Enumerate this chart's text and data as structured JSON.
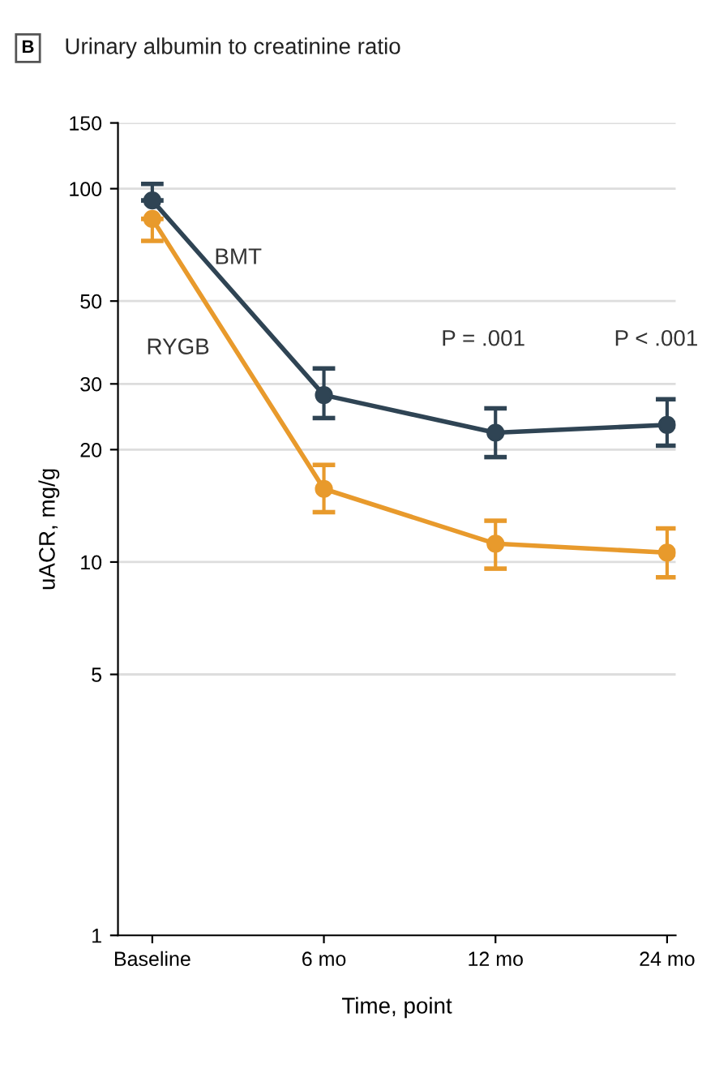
{
  "chart_data": {
    "type": "line",
    "title": "Urinary albumin to creatinine ratio",
    "xlabel": "Time, point",
    "ylabel": "uACR, mg/g",
    "categories": [
      "Baseline",
      "6 mo",
      "12 mo",
      "24 mo"
    ],
    "series": [
      {
        "name": "BMT",
        "color": "#2f4454",
        "values": [
          93,
          28,
          22.2,
          23.3
        ],
        "errors": [
          [
            93,
            103
          ],
          [
            24.3,
            33
          ],
          [
            19.1,
            25.8
          ],
          [
            20.5,
            27.3
          ]
        ]
      },
      {
        "name": "RYGB",
        "color": "#e89a2c",
        "values": [
          83,
          15.7,
          11.2,
          10.6
        ],
        "errors": [
          [
            72.5,
            83
          ],
          [
            13.6,
            18.2
          ],
          [
            9.6,
            12.9
          ],
          [
            9.1,
            12.3
          ]
        ]
      }
    ],
    "annotations": [
      "B",
      "P = .001",
      "P < .001"
    ],
    "log": "y",
    "ylim": [
      1,
      150
    ],
    "yticks": [
      1,
      5,
      10,
      20,
      30,
      50,
      100,
      150
    ],
    "grid": "y",
    "marker": "circle",
    "line_style": "solid",
    "legend": false
  }
}
